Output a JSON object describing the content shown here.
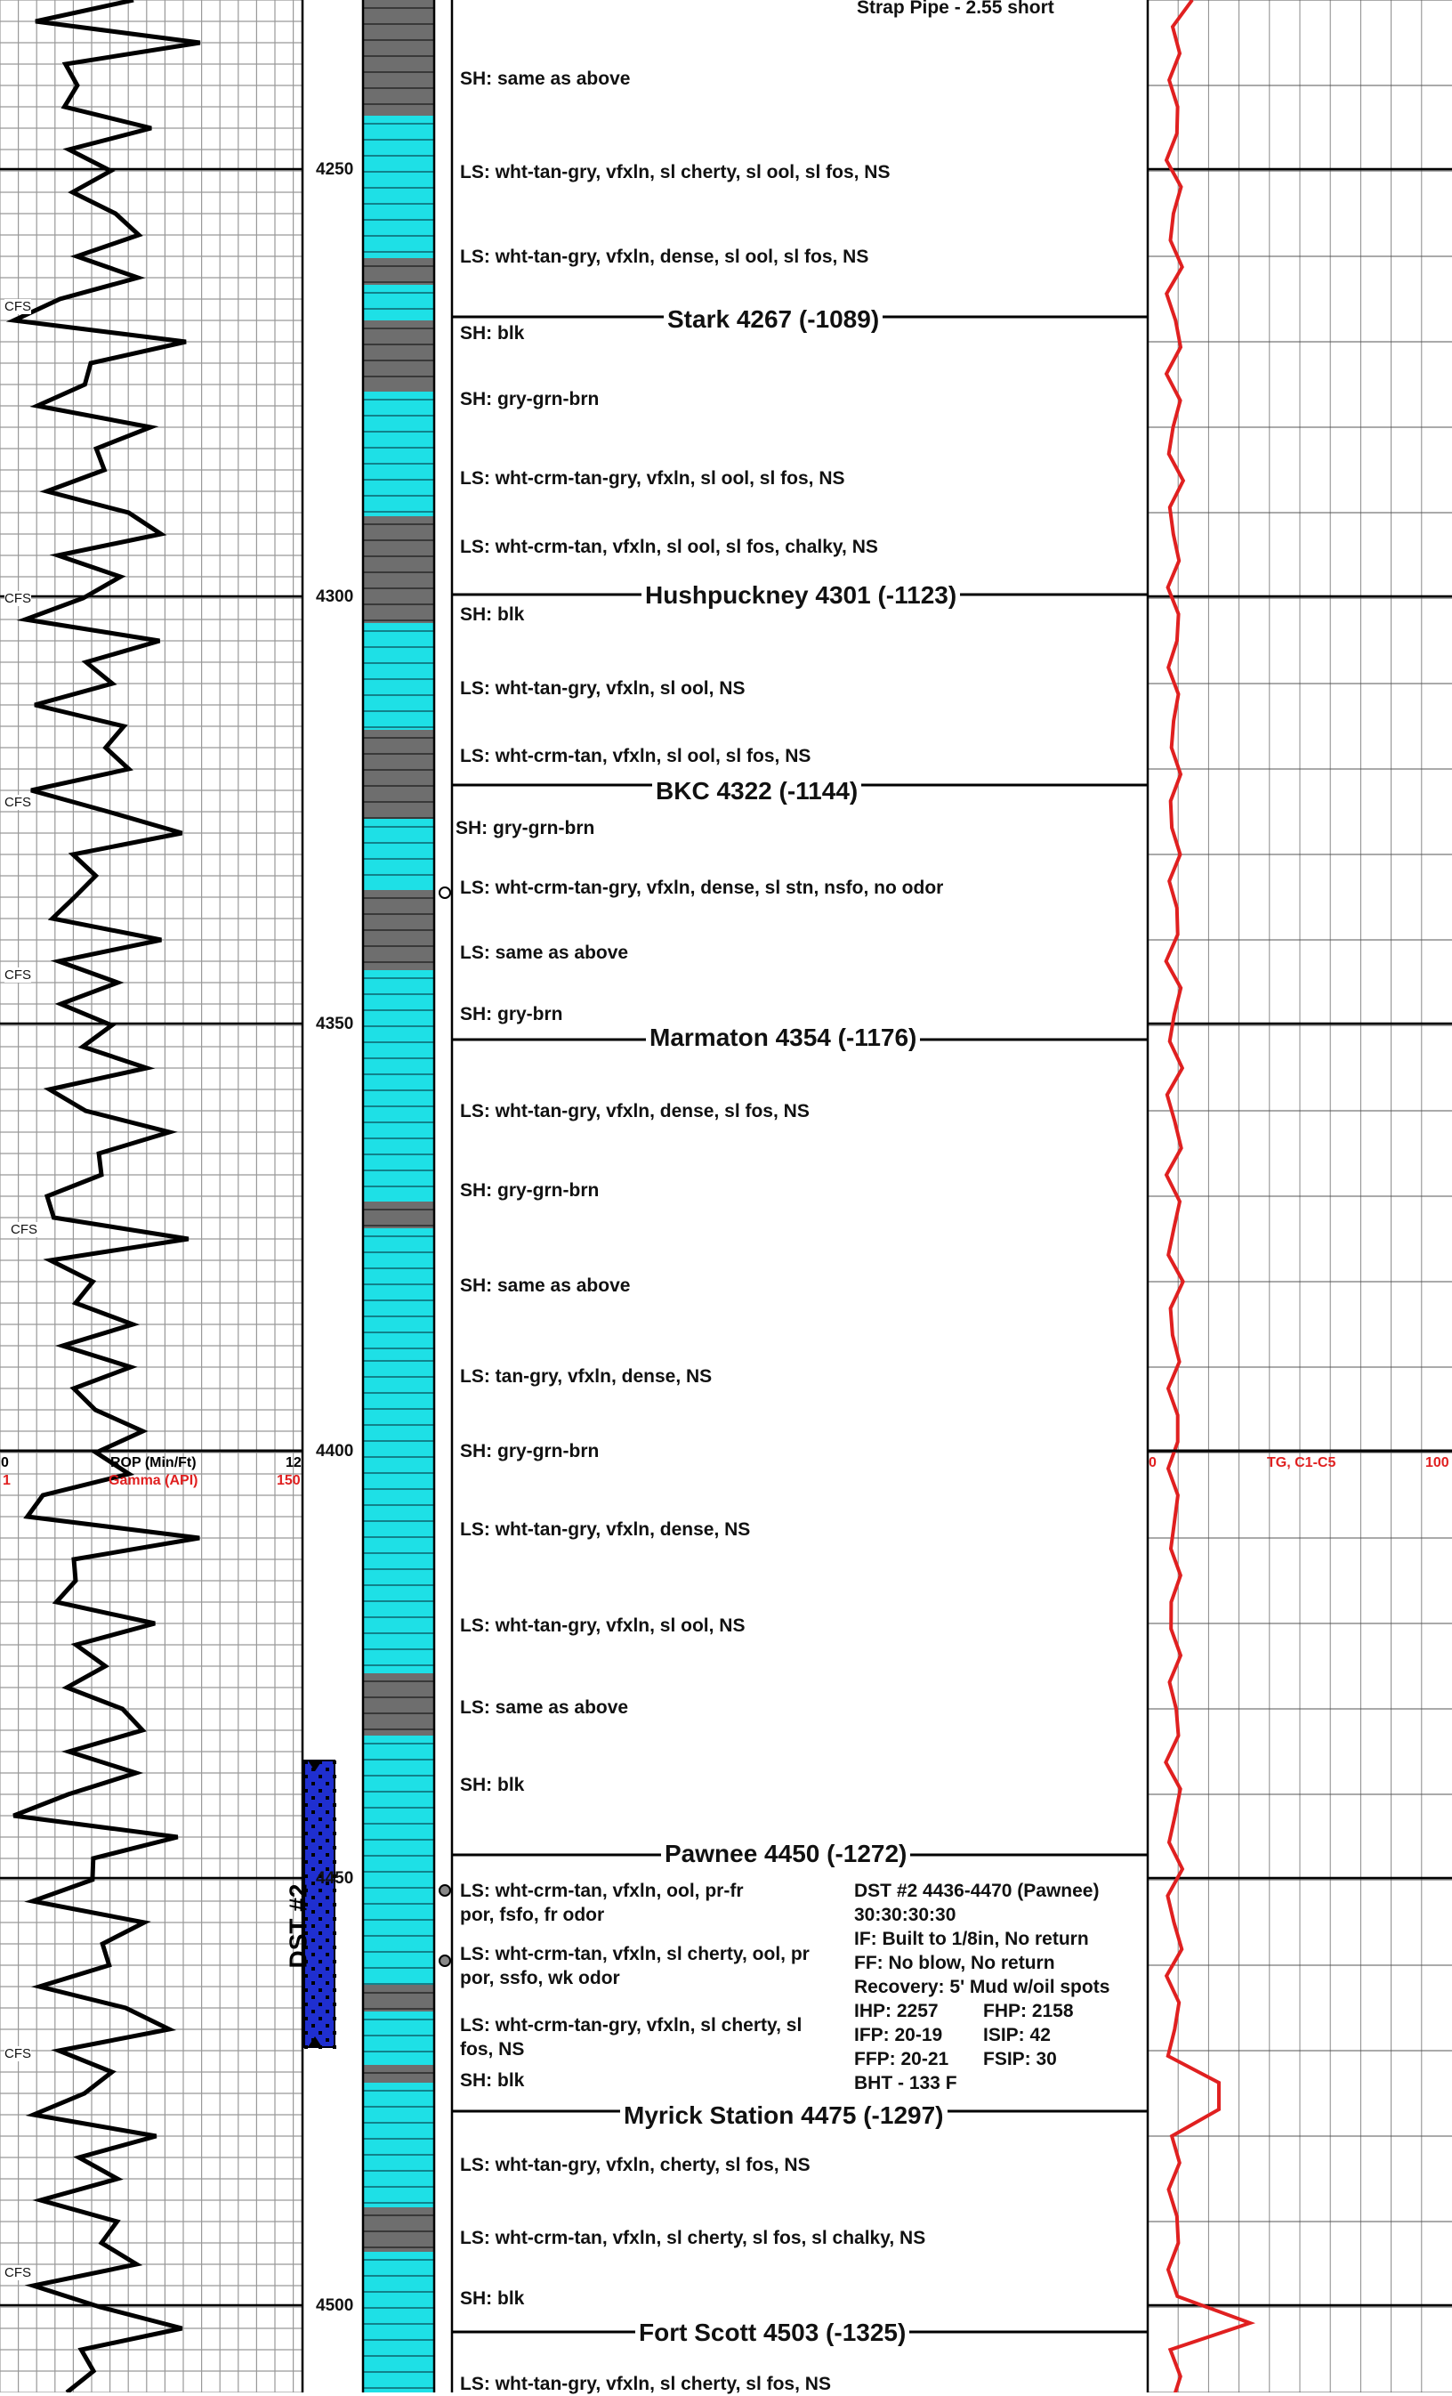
{
  "strap_note": "Strap Pipe - 2.55 short",
  "depth_labels": [
    "4250",
    "4300",
    "4350",
    "4400",
    "4450",
    "4500"
  ],
  "tops": [
    {
      "text": "Stark 4267 (-1089)"
    },
    {
      "text": "Hushpuckney 4301 (-1123)"
    },
    {
      "text": "BKC 4322 (-1144)"
    },
    {
      "text": "Marmaton 4354 (-1176)"
    },
    {
      "text": "Pawnee 4450 (-1272)"
    },
    {
      "text": "Myrick Station 4475 (-1297)"
    },
    {
      "text": "Fort Scott 4503 (-1325)"
    }
  ],
  "lithology_descriptions": [
    "SH: same as above",
    "LS: wht-tan-gry, vfxln, sl cherty, sl ool, sl fos, NS",
    "LS: wht-tan-gry, vfxln, dense, sl ool, sl fos, NS",
    "SH: blk",
    "SH: gry-grn-brn",
    "LS: wht-crm-tan-gry, vfxln, sl ool, sl fos, NS",
    "LS: wht-crm-tan, vfxln, sl ool, sl fos, chalky, NS",
    "SH: blk",
    "LS: wht-tan-gry, vfxln, sl ool, NS",
    "LS: wht-crm-tan, vfxln, sl ool, sl fos, NS",
    "SH: gry-grn-brn",
    "LS: wht-crm-tan-gry, vfxln, dense, sl stn, nsfo, no odor",
    "LS: same as above",
    "SH: gry-brn",
    "LS: wht-tan-gry, vfxln, dense, sl fos, NS",
    "SH: gry-grn-brn",
    "SH: same as above",
    "LS: tan-gry, vfxln, dense, NS",
    "SH: gry-grn-brn",
    "LS: wht-tan-gry, vfxln, dense, NS",
    "LS: wht-tan-gry, vfxln, sl ool, NS",
    "LS: same as above",
    "SH: blk",
    "LS: wht-crm-tan, vfxln, ool, pr-fr",
    "por, fsfo, fr odor",
    "LS: wht-crm-tan, vfxln, sl cherty, ool, pr",
    "por, ssfo, wk odor",
    "LS: wht-crm-tan-gry, vfxln, sl cherty, sl",
    "fos, NS",
    "SH: blk",
    "LS: wht-tan-gry, vfxln, cherty, sl fos, NS",
    "LS: wht-crm-tan, vfxln, sl cherty, sl fos, sl chalky, NS",
    "SH: blk",
    "LS: wht-tan-gry, vfxln, sl cherty, sl fos, NS"
  ],
  "dst": {
    "label": "DST #2",
    "lines": [
      "DST #2 4436-4470 (Pawnee)",
      "30:30:30:30",
      "IF: Built to 1/8in, No return",
      "FF: No blow, No return",
      "Recovery: 5' Mud w/oil spots",
      "IHP: 2257",
      "FHP: 2158",
      "IFP: 20-19",
      "ISIP: 42",
      "FFP: 20-21",
      "FSIP: 30",
      "BHT - 133 F"
    ]
  },
  "cfs_label": "CFS",
  "left_track_header": {
    "rop_min": "0",
    "rop_label": "ROP (Min/Ft)",
    "rop_max": "12",
    "gamma_min": "1",
    "gamma_label": "Gamma (API)",
    "gamma_max": "150"
  },
  "right_track_header": {
    "min": "0",
    "label": "TG, C1-C5",
    "max": "100"
  },
  "colors": {
    "limestone": "#1ee0e6",
    "shale": "#6e6e6e",
    "gas_curve": "#e02020",
    "dst_interval": "#1f2fd0"
  }
}
